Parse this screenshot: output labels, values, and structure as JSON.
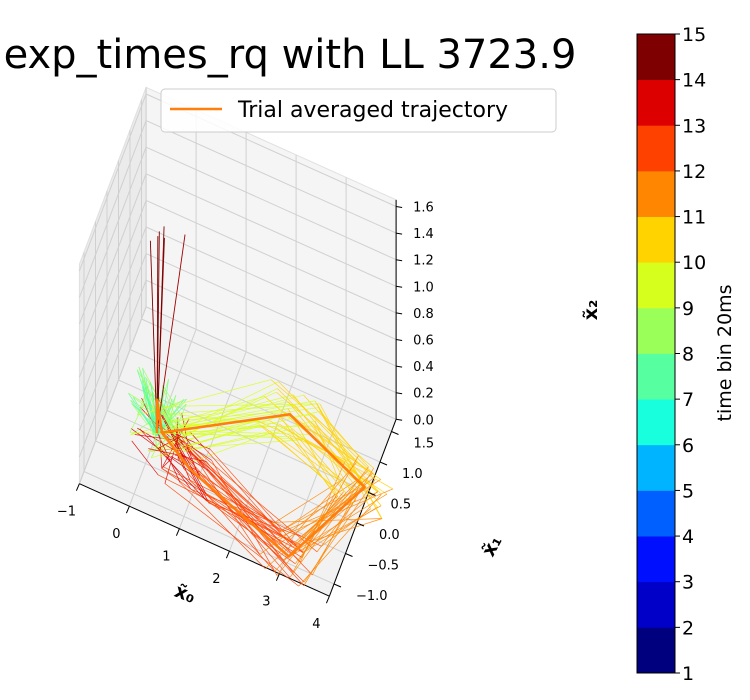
{
  "chart_data": {
    "type": "line",
    "projection": "3d",
    "title": "exp_times_rq with LL 3723.9",
    "xlabel": "x̃₀",
    "ylabel": "x̃₁",
    "zlabel": "x̃₂",
    "xlim": [
      -1,
      4
    ],
    "ylim": [
      -1.2,
      1.7
    ],
    "zlim": [
      0,
      1.65
    ],
    "xticks": [
      "−1",
      "0",
      "1",
      "2",
      "3",
      "4"
    ],
    "yticks": [
      "−1.0",
      "−0.5",
      "0.0",
      "0.5",
      "1.0",
      "1.5"
    ],
    "zticks": [
      "0.0",
      "0.2",
      "0.4",
      "0.6",
      "0.8",
      "1.0",
      "1.2",
      "1.4",
      "1.6"
    ],
    "grid": true,
    "legend": {
      "placement": "top-right",
      "entries": [
        {
          "name": "Trial averaged trajectory",
          "color": "#ff7f0e"
        }
      ]
    },
    "series": [
      {
        "name": "Trial averaged trajectory",
        "color": "#ff7f0e",
        "points": [
          {
            "bin": 1,
            "x": 0.0,
            "y": 0.0,
            "z": 0.0
          },
          {
            "bin": 2,
            "x": 0.0,
            "y": 0.0,
            "z": 0.25
          },
          {
            "bin": 3,
            "x": 0.1,
            "y": 0.0,
            "z": 0.02
          },
          {
            "bin": 4,
            "x": 2.15,
            "y": 1.1,
            "z": 0.0
          },
          {
            "bin": 5,
            "x": 3.9,
            "y": 0.55,
            "z": 0.0
          },
          {
            "bin": 6,
            "x": 3.05,
            "y": -0.9,
            "z": 0.0
          },
          {
            "bin": 7,
            "x": 0.8,
            "y": -0.3,
            "z": 0.0
          },
          {
            "bin": 8,
            "x": 0.05,
            "y": 0.05,
            "z": 0.0
          }
        ]
      }
    ],
    "colorbar": {
      "label": "time bin 20ms",
      "ticks": [
        "1",
        "2",
        "3",
        "4",
        "5",
        "6",
        "7",
        "8",
        "9",
        "10",
        "11",
        "12",
        "13",
        "14",
        "15"
      ],
      "colors": [
        "#00007f",
        "#0000c8",
        "#0010ff",
        "#0060ff",
        "#00b4ff",
        "#18ffdd",
        "#56ff9f",
        "#9bff5a",
        "#d7ff1e",
        "#ffd300",
        "#ff8600",
        "#ff4100",
        "#dd0000",
        "#7f0000"
      ]
    }
  }
}
